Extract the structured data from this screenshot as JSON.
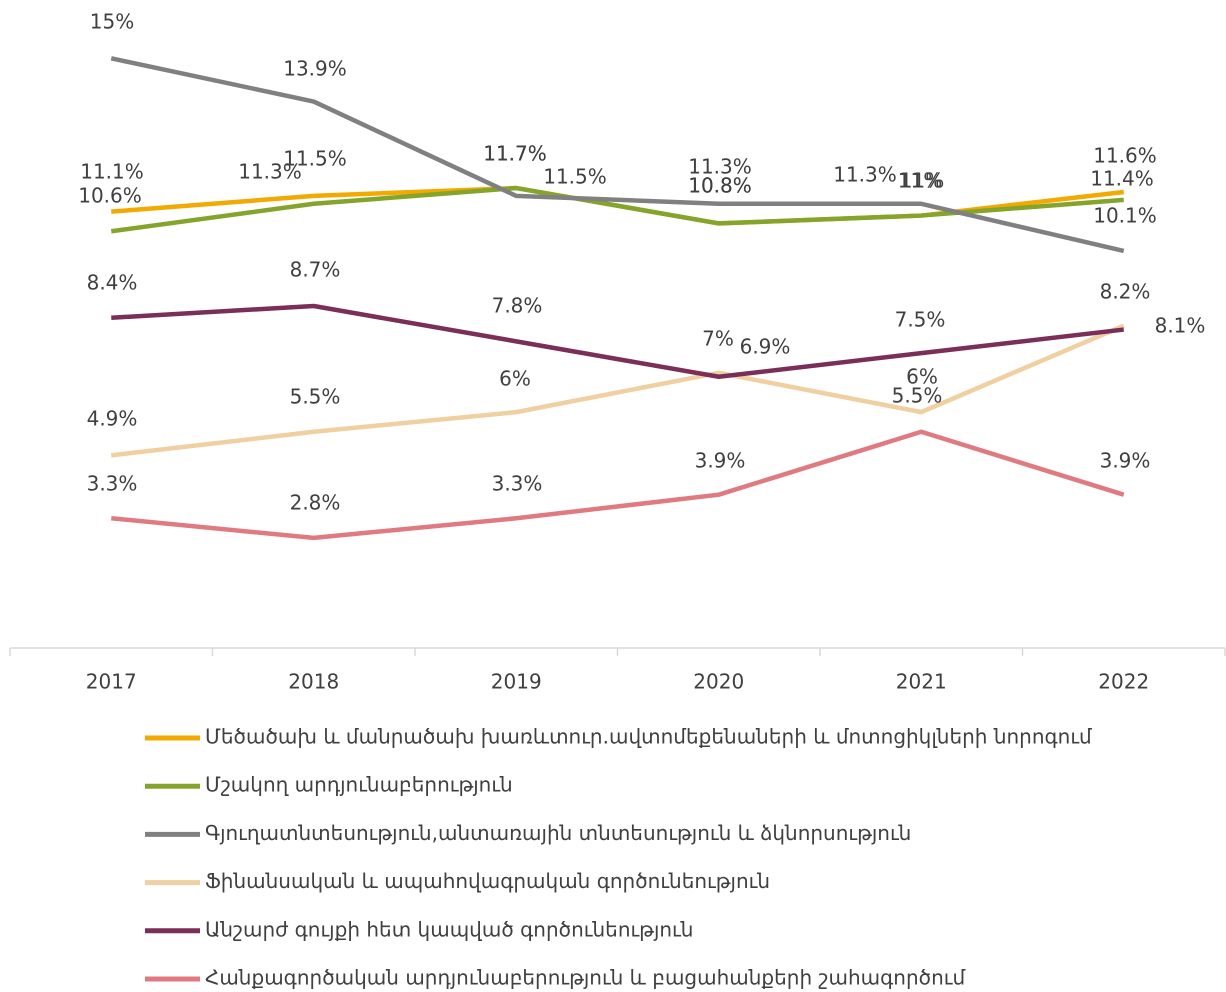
{
  "chart_data": {
    "type": "line",
    "categories": [
      "2017",
      "2018",
      "2019",
      "2020",
      "2021",
      "2022"
    ],
    "ylim": [
      0,
      16
    ],
    "series": [
      {
        "name": "Մեծածախ և մանրածախ խառևտուր.ավտոմեքենաների և մոտոցիկլների նորոգում",
        "color": "#f2a900",
        "values": [
          11.1,
          11.5,
          11.7,
          10.8,
          11,
          11.6
        ],
        "value_labels": [
          "11.1%",
          "11.5%",
          "11.7%",
          "10.8%",
          "11%",
          "11.6%"
        ]
      },
      {
        "name": "Մշակող արդյունաբերություն",
        "color": "#84a42b",
        "values": [
          10.6,
          11.3,
          11.7,
          10.8,
          11,
          11.4
        ],
        "value_labels": [
          "10.6%",
          "11.3%",
          "11.7%",
          "10.8%",
          "11%",
          "11.4%"
        ]
      },
      {
        "name": "Գյուղատնտեսություն,անտառային տնտեսություն և ձկնորսություն",
        "color": "#808080",
        "values": [
          15,
          13.9,
          11.5,
          11.3,
          11.3,
          10.1
        ],
        "value_labels": [
          "15%",
          "13.9%",
          "11.5%",
          "11.3%",
          "11.3%",
          "10.1%"
        ]
      },
      {
        "name": "Ֆինանսական և ապահովագրական գործունեություն",
        "color": "#f0cfa0",
        "values": [
          4.9,
          5.5,
          6,
          7,
          6,
          8.2
        ],
        "value_labels": [
          "4.9%",
          "5.5%",
          "6%",
          "7%",
          "6%",
          "8.2%"
        ]
      },
      {
        "name": "Անշարժ գույքի հետ կապված գործունեություն",
        "color": "#7a2e58",
        "values": [
          8.4,
          8.7,
          7.8,
          6.9,
          7.5,
          8.1
        ],
        "value_labels": [
          "8.4%",
          "8.7%",
          "7.8%",
          "6.9%",
          "7.5%",
          "8.1%"
        ]
      },
      {
        "name": "Հանքագործական արդյունաբերություն և բացահանքերի շահագործում",
        "color": "#e07a80",
        "values": [
          3.3,
          2.8,
          3.3,
          3.9,
          5.5,
          3.9
        ],
        "value_labels": [
          "3.3%",
          "2.8%",
          "3.3%",
          "3.9%",
          "5.5%",
          "3.9%"
        ]
      }
    ]
  }
}
